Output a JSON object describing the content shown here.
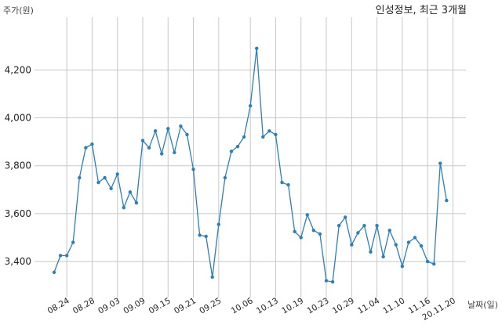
{
  "chart_data": {
    "type": "line",
    "title": "인성정보, 최근 3개월",
    "ylabel": "주가(원)",
    "xlabel": "날짜(일)",
    "ylim": [
      3250,
      4420
    ],
    "yticks": [
      3400,
      3600,
      3800,
      4000,
      4200
    ],
    "ytick_labels": [
      "3,400",
      "3,600",
      "3,800",
      "4,000",
      "4,200"
    ],
    "xtick_labels": [
      "08.24",
      "08.28",
      "09.03",
      "09.09",
      "09.15",
      "09.21",
      "09.25",
      "10.06",
      "10.13",
      "10.19",
      "10.23",
      "10.29",
      "11.04",
      "11.10",
      "11.16",
      "20.11.20"
    ],
    "xtick_index": [
      2,
      6,
      10,
      14,
      18,
      22,
      26,
      31,
      35,
      39,
      43,
      47,
      51,
      55,
      59,
      63
    ],
    "grid": true,
    "line_color": "#2c7fb8",
    "series": [
      {
        "values": [
          3355,
          3425,
          3425,
          3480,
          3750,
          3875,
          3890,
          3730,
          3750,
          3705,
          3765,
          3625,
          3690,
          3645,
          3905,
          3875,
          3945,
          3850,
          3955,
          3855,
          3965,
          3930,
          3785,
          3510,
          3505,
          3335,
          3555,
          3750,
          3860,
          3880,
          3920,
          4050,
          4290,
          3920,
          3945,
          3930,
          3730,
          3720,
          3525,
          3500,
          3595,
          3530,
          3515,
          3320,
          3315,
          3550,
          3585,
          3470,
          3520,
          3550,
          3440,
          3550,
          3420,
          3530,
          3470,
          3380,
          3480,
          3500,
          3465,
          3400,
          3390,
          3810,
          3655
        ]
      }
    ]
  }
}
